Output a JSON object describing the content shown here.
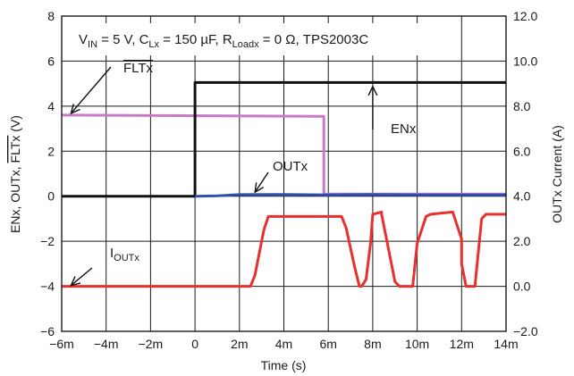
{
  "chart_data": {
    "type": "line",
    "x_axis": {
      "label": "Time (s)",
      "range": [
        -0.006,
        0.014
      ],
      "ticks": [
        -0.006,
        -0.004,
        -0.002,
        0,
        0.002,
        0.004,
        0.006,
        0.008,
        0.01,
        0.012,
        0.014
      ],
      "tick_labels": [
        "−6m",
        "−4m",
        "−2m",
        "0",
        "2m",
        "4m",
        "6m",
        "8m",
        "10m",
        "12m",
        "14m"
      ]
    },
    "y_left": {
      "label_parts": [
        "ENx, OUTx, ",
        "FLTx",
        " (V)"
      ],
      "range": [
        -6,
        8
      ],
      "ticks": [
        -6,
        -4,
        -2,
        0,
        2,
        4,
        6,
        8
      ],
      "tick_labels": [
        "−6",
        "−4",
        "−2",
        "0",
        "2",
        "4",
        "6",
        "8"
      ]
    },
    "y_right": {
      "label": "OUTx Current (A)",
      "range": [
        -2,
        12
      ],
      "ticks": [
        -2,
        0,
        2,
        4,
        6,
        8,
        10,
        12
      ],
      "tick_labels": [
        "−2.0",
        "0.0",
        "2.0",
        "4.0",
        "6.0",
        "8.0",
        "10.0",
        "12.0"
      ]
    },
    "grid": true,
    "condition_text": {
      "p1": "V",
      "p1_sub": "IN",
      "p2": " = 5 V, C",
      "p2_sub": "Lx",
      "p3": " = 150 µF, R",
      "p3_sub": "Loadx",
      "p4": " = 0 Ω, TPS2003C"
    },
    "series": [
      {
        "name": "ENx",
        "color": "#111111",
        "axis": "left",
        "x": [
          -0.006,
          0,
          0,
          0.014
        ],
        "y": [
          0,
          0,
          5.05,
          5.05
        ]
      },
      {
        "name": "OUTx",
        "color": "#2f4fb0",
        "axis": "left",
        "x": [
          0,
          0.001,
          0.002,
          0.004,
          0.006,
          0.008,
          0.01,
          0.012,
          0.014
        ],
        "y": [
          0,
          0.02,
          0.07,
          0.08,
          0.06,
          0.07,
          0.06,
          0.06,
          0.06
        ]
      },
      {
        "name": "FLTx",
        "color": "#c77ac7",
        "axis": "left",
        "x": [
          -0.006,
          0.0058,
          0.0058,
          0.014
        ],
        "y": [
          3.6,
          3.55,
          0.1,
          0.1
        ]
      },
      {
        "name": "IOUTx",
        "name_main": "I",
        "name_sub": "OUTx",
        "color": "#e8302e",
        "axis": "right",
        "x": [
          -0.006,
          0.0025,
          0.0027,
          0.0031,
          0.0033,
          0.0035,
          0.0066,
          0.0068,
          0.0072,
          0.0074,
          0.0075,
          0.0077,
          0.0079,
          0.008,
          0.0084,
          0.0084,
          0.0086,
          0.009,
          0.0092,
          0.0098,
          0.01,
          0.0104,
          0.0106,
          0.0116,
          0.0118,
          0.012,
          0.012,
          0.0122,
          0.0126,
          0.0129,
          0.0131,
          0.014
        ],
        "y": [
          0,
          0,
          0.5,
          2.5,
          3.1,
          3.1,
          3.1,
          2.6,
          0.8,
          0,
          0,
          0.3,
          1.9,
          3.2,
          3.3,
          3.2,
          2.2,
          0.2,
          0,
          0,
          1.9,
          3.1,
          3.2,
          3.3,
          2.7,
          2.1,
          1.0,
          0,
          0,
          3.0,
          3.2,
          3.2
        ]
      }
    ],
    "annotations": [
      {
        "text": "ENx",
        "target_x": 0.008,
        "target_y": 4.95
      },
      {
        "text": "OUTx",
        "target_x": 0.0027,
        "target_y": 0.1
      },
      {
        "text": "FLTx",
        "overline": true,
        "target_x": -0.0055,
        "target_y": 3.6
      },
      {
        "text": "I",
        "sub": "OUTx",
        "target_x": -0.0055,
        "target_y": -4.0
      }
    ]
  }
}
